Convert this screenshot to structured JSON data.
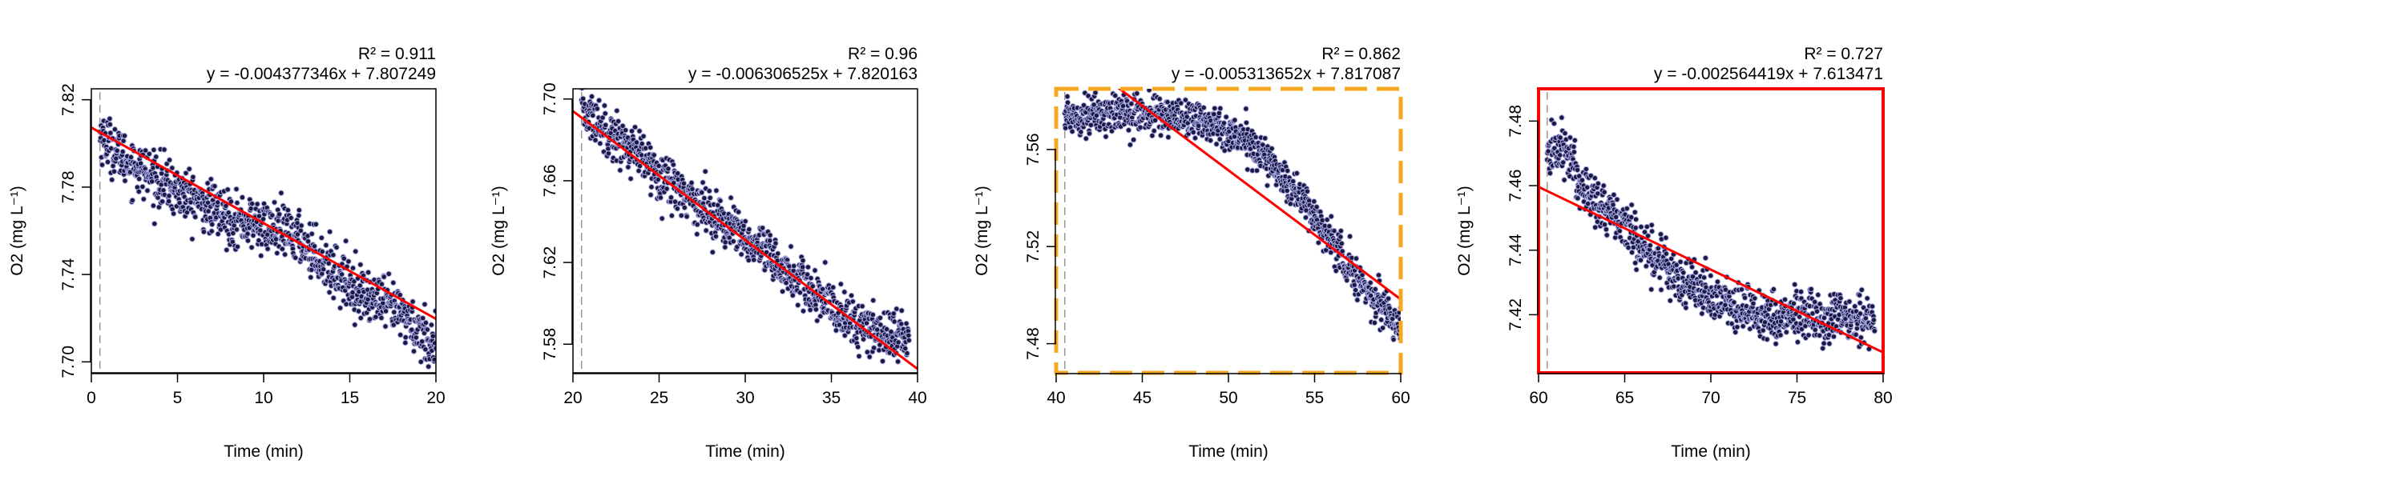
{
  "chart_data": [
    {
      "type": "scatter",
      "xlabel": "Time (min)",
      "ylabel": "O2 (mg L⁻¹)",
      "r2_label": "R² = 0.911",
      "equation": "y = -0.004377346x + 7.807249",
      "xlim": [
        0,
        20
      ],
      "ylim": [
        7.695,
        7.825
      ],
      "xticks": [
        0,
        5,
        10,
        15,
        20
      ],
      "yticks": [
        7.7,
        7.74,
        7.78,
        7.82
      ],
      "ytick_labels": [
        "7.70",
        "7.74",
        "7.78",
        "7.82"
      ],
      "fit": {
        "slope": -0.004377346,
        "intercept": 7.807249,
        "x_min": 0,
        "x_max": 20
      },
      "vline_x": 0.5,
      "border": "none",
      "border_color": "#000000",
      "data_trend": [
        [
          0.5,
          7.804
        ],
        [
          2,
          7.792
        ],
        [
          5,
          7.778
        ],
        [
          8,
          7.766
        ],
        [
          10,
          7.762
        ],
        [
          12,
          7.757
        ],
        [
          14,
          7.742
        ],
        [
          16,
          7.73
        ],
        [
          18,
          7.722
        ],
        [
          20,
          7.707
        ]
      ],
      "noise": 0.006,
      "series": [
        {
          "color": "#1a1a40",
          "stroke": "#a9a9e6"
        }
      ]
    },
    {
      "type": "scatter",
      "xlabel": "Time (min)",
      "ylabel": "O2 (mg L⁻¹)",
      "r2_label": "R² = 0.96",
      "equation": "y = -0.006306525x + 7.820163",
      "xlim": [
        20,
        40
      ],
      "ylim": [
        7.566,
        7.705
      ],
      "xticks": [
        20,
        25,
        30,
        35,
        40
      ],
      "yticks": [
        7.58,
        7.62,
        7.66,
        7.7
      ],
      "ytick_labels": [
        "7.58",
        "7.62",
        "7.66",
        "7.70"
      ],
      "fit": {
        "slope": -0.006306525,
        "intercept": 7.820163,
        "x_min": 20,
        "x_max": 40
      },
      "vline_x": 20.5,
      "border": "none",
      "border_color": "#000000",
      "data_trend": [
        [
          20.5,
          7.695
        ],
        [
          23,
          7.678
        ],
        [
          26,
          7.657
        ],
        [
          29,
          7.638
        ],
        [
          32,
          7.618
        ],
        [
          35,
          7.598
        ],
        [
          37,
          7.587
        ],
        [
          39.5,
          7.583
        ]
      ],
      "noise": 0.006,
      "series": [
        {
          "color": "#1a1a40",
          "stroke": "#a9a9e6"
        }
      ]
    },
    {
      "type": "scatter",
      "xlabel": "Time (min)",
      "ylabel": "O2 (mg L⁻¹)",
      "r2_label": "R² = 0.862",
      "equation": "y = -0.005313652x + 7.817087",
      "xlim": [
        40,
        60
      ],
      "ylim": [
        7.468,
        7.585
      ],
      "xticks": [
        40,
        45,
        50,
        55,
        60
      ],
      "yticks": [
        7.48,
        7.52,
        7.56
      ],
      "ytick_labels": [
        "7.48",
        "7.52",
        "7.56"
      ],
      "fit": {
        "slope": -0.005313652,
        "intercept": 7.817087,
        "x_min": 40,
        "x_max": 60
      },
      "vline_x": 40.5,
      "border": "dashed",
      "border_color": "#f5a623",
      "data_trend": [
        [
          40.5,
          7.574
        ],
        [
          44,
          7.575
        ],
        [
          48,
          7.573
        ],
        [
          50,
          7.568
        ],
        [
          52,
          7.558
        ],
        [
          54,
          7.542
        ],
        [
          56,
          7.522
        ],
        [
          58,
          7.502
        ],
        [
          60,
          7.487
        ]
      ],
      "noise": 0.004,
      "series": [
        {
          "color": "#1a1a40",
          "stroke": "#a9a9e6"
        }
      ]
    },
    {
      "type": "scatter",
      "xlabel": "Time (min)",
      "ylabel": "O2 (mg L⁻¹)",
      "r2_label": "R² = 0.727",
      "equation": "y = -0.002564419x + 7.613471",
      "xlim": [
        60,
        80
      ],
      "ylim": [
        7.402,
        7.49
      ],
      "xticks": [
        60,
        65,
        70,
        75,
        80
      ],
      "yticks": [
        7.42,
        7.44,
        7.46,
        7.48
      ],
      "ytick_labels": [
        "7.42",
        "7.44",
        "7.46",
        "7.48"
      ],
      "fit": {
        "slope": -0.002564419,
        "intercept": 7.613471,
        "x_min": 60,
        "x_max": 80
      },
      "vline_x": 60.5,
      "border": "solid",
      "border_color": "#ff0000",
      "data_trend": [
        [
          60.5,
          7.47
        ],
        [
          61.5,
          7.472
        ],
        [
          62.5,
          7.46
        ],
        [
          64,
          7.452
        ],
        [
          66,
          7.442
        ],
        [
          68,
          7.432
        ],
        [
          70,
          7.426
        ],
        [
          72,
          7.421
        ],
        [
          75,
          7.419
        ],
        [
          78,
          7.418
        ],
        [
          79.5,
          7.419
        ]
      ],
      "noise": 0.004,
      "series": [
        {
          "color": "#1a1a40",
          "stroke": "#a9a9e6"
        }
      ]
    }
  ]
}
